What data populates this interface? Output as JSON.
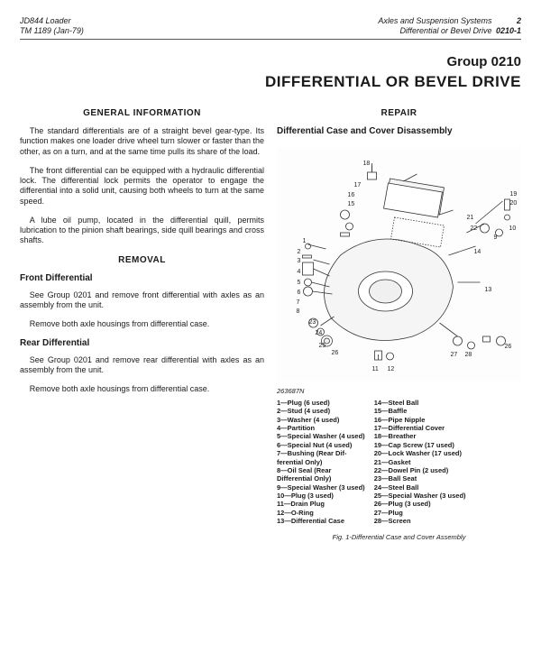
{
  "header": {
    "left1": "JD844 Loader",
    "left2": "TM 1189   (Jan-79)",
    "right1a": "Axles and Suspension Systems",
    "right1b": "2",
    "right2a": "Differential or Bevel Drive",
    "right2b": "0210-1"
  },
  "titles": {
    "group": "Group 0210",
    "main": "DIFFERENTIAL OR BEVEL DRIVE"
  },
  "left": {
    "h_general": "GENERAL INFORMATION",
    "p1": "The standard differentials are of a straight bevel gear-type. Its function makes one loader drive wheel turn slower or faster than the other, as on a turn, and at the same time pulls its share of the load.",
    "p2": "The front differential can be equipped with a hy­draulic differential lock. The differential lock permits the operator to engage the differential into a solid unit, causing both wheels to turn at the same speed.",
    "p3": "A lube oil pump, located in the differential quill, permits lubrication to the pinion shaft bearings, side quill bearings and cross shafts.",
    "h_removal": "REMOVAL",
    "h_front": "Front Differential",
    "p4": "See Group 0201 and remove front differential with axles as an assembly from the unit.",
    "p5": "Remove both axle housings from differential case.",
    "h_rear": "Rear Differential",
    "p6": "See Group 0201 and remove rear differential with axles as an assembly from the unit.",
    "p7": "Remove both axle housings from differential case."
  },
  "right": {
    "h_repair": "REPAIR",
    "h_dis": "Differential Case and Cover Disassembly",
    "figid": "263687N",
    "caption": "Fig. 1-Differential Case and Cover Assembly"
  },
  "parts": {
    "colA": [
      "1—Plug (6 used)",
      "2—Stud (4 used)",
      "3—Washer (4 used)",
      "4—Partition",
      "5—Special Washer (4 used)",
      "6—Special Nut (4 used)",
      "7—Bushing (Rear Dif-",
      "    ferential Only)",
      "8—Oil Seal (Rear",
      "    Differential Only)",
      "9—Special Washer (3 used)",
      "10—Plug (3 used)",
      "11—Drain Plug",
      "12—O-Ring",
      "13—Differential Case"
    ],
    "colB": [
      "14—Steel Ball",
      "15—Baffle",
      "16—Pipe Nipple",
      "17—Differential Cover",
      "18—Breather",
      "19—Cap Screw (17 used)",
      "20—Lock Washer (17 used)",
      "21—Gasket",
      "22—Dowel Pin (2 used)",
      "23—Ball Seat",
      "24—Steel Ball",
      "25—Special Washer (3 used)",
      "26—Plug (3 used)",
      "27—Plug",
      "28—Screen"
    ]
  },
  "diagram_labels": [
    "1",
    "2",
    "3",
    "4",
    "5",
    "6",
    "7",
    "8",
    "9",
    "10",
    "11",
    "12",
    "13",
    "14",
    "15",
    "16",
    "17",
    "18",
    "19",
    "20",
    "21",
    "22",
    "23",
    "24",
    "25",
    "26",
    "26",
    "27",
    "28"
  ]
}
